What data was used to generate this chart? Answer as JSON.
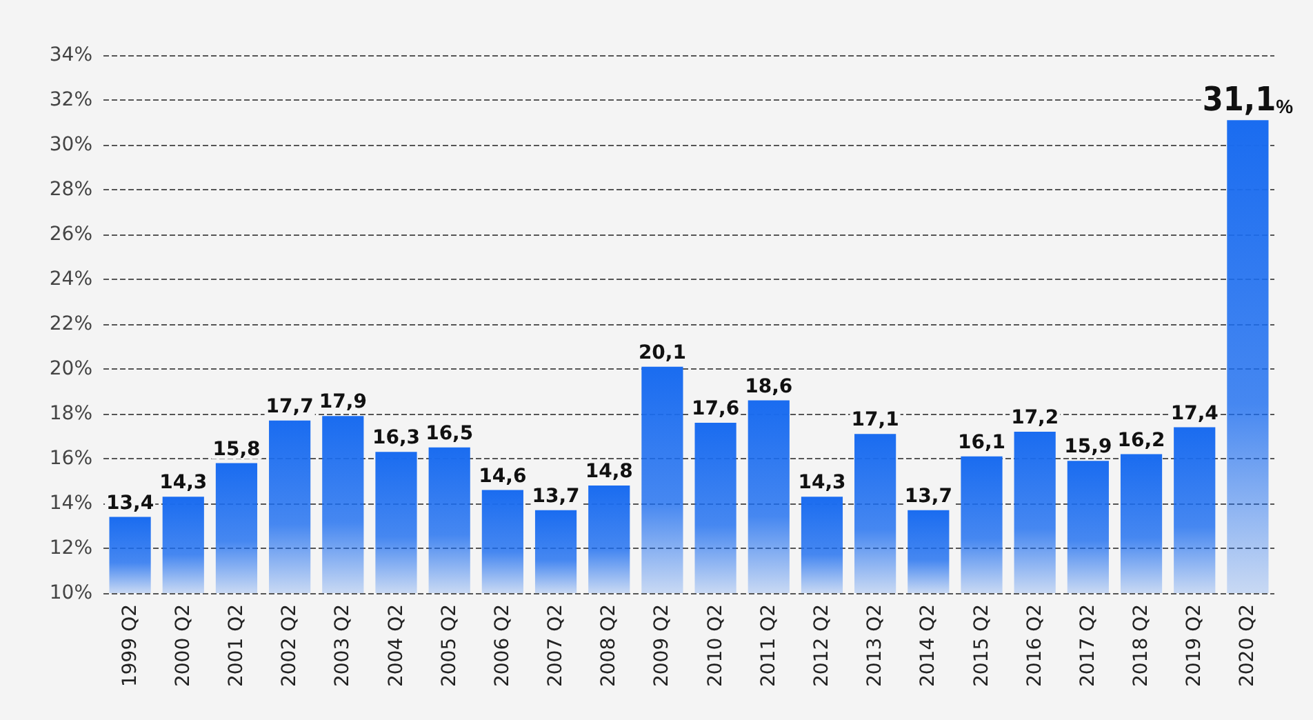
{
  "chart_data": {
    "type": "bar",
    "categories": [
      "1999 Q2",
      "2000 Q2",
      "2001 Q2",
      "2002 Q2",
      "2003 Q2",
      "2004 Q2",
      "2005 Q2",
      "2006 Q2",
      "2007 Q2",
      "2008 Q2",
      "2009 Q2",
      "2010 Q2",
      "2011 Q2",
      "2012 Q2",
      "2013 Q2",
      "2014 Q2",
      "2015 Q2",
      "2016 Q2",
      "2017 Q2",
      "2018 Q2",
      "2019 Q2",
      "2020 Q2"
    ],
    "values": [
      13.4,
      14.3,
      15.8,
      17.7,
      17.9,
      16.3,
      16.5,
      14.6,
      13.7,
      14.8,
      20.1,
      17.6,
      18.6,
      14.3,
      17.1,
      13.7,
      16.1,
      17.2,
      15.9,
      16.2,
      17.4,
      31.1
    ],
    "value_labels": [
      "13,4",
      "14,3",
      "15,8",
      "17,7",
      "17,9",
      "16,3",
      "16,5",
      "14,6",
      "13,7",
      "14,8",
      "20,1",
      "17,6",
      "18,6",
      "14,3",
      "17,1",
      "13,7",
      "16,1",
      "17,2",
      "15,9",
      "16,2",
      "17,4",
      "31,1%"
    ],
    "color": "#1a6cf0",
    "ylim": [
      10,
      34
    ],
    "yticks": [
      {
        "value": 10,
        "label": "10%"
      },
      {
        "value": 12,
        "label": "12%"
      },
      {
        "value": 14,
        "label": "14%"
      },
      {
        "value": 16,
        "label": "16%"
      },
      {
        "value": 18,
        "label": "18%"
      },
      {
        "value": 20,
        "label": "20%"
      },
      {
        "value": 22,
        "label": "22%"
      },
      {
        "value": 24,
        "label": "24%"
      },
      {
        "value": 26,
        "label": "26%"
      },
      {
        "value": 28,
        "label": "28%"
      },
      {
        "value": 30,
        "label": "30%"
      },
      {
        "value": 32,
        "label": "32%"
      },
      {
        "value": 34,
        "label": "34%"
      }
    ],
    "grid": "y"
  }
}
